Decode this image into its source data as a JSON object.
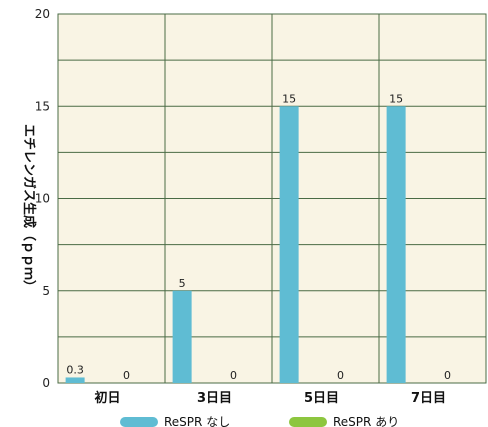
{
  "chart_data": {
    "type": "bar",
    "ylabel": "エチレンガス生成（ｐｐｍ）",
    "categories": [
      "初日",
      "3日目",
      "5日目",
      "7日目"
    ],
    "series": [
      {
        "name": "ReSPR なし",
        "values": [
          0.3,
          5,
          15,
          15
        ],
        "labels": [
          "0.3",
          "5",
          "15",
          "15"
        ]
      },
      {
        "name": "ReSPR あり",
        "values": [
          0,
          0,
          0,
          0
        ],
        "labels": [
          "0",
          "0",
          "0",
          "0"
        ]
      }
    ],
    "ylim": [
      0,
      20
    ],
    "yticks": [
      0,
      5,
      10,
      15,
      20
    ],
    "grid": true,
    "legend": "bottom"
  },
  "colors": {
    "plot_bg": "#f9f4e4",
    "grid": "#4a6b45",
    "series": [
      "#5fbcd3",
      "#8dc63f"
    ]
  }
}
